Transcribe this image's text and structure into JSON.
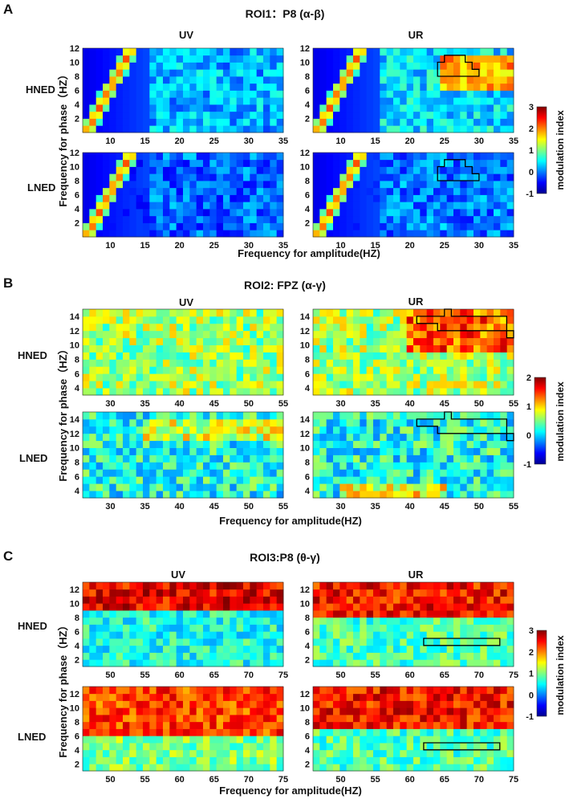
{
  "figure": {
    "panel_letters": [
      "A",
      "B",
      "C"
    ],
    "y_axis_label": "Frequency for phase（HZ）",
    "colorbar_label": "modulation index"
  },
  "chart_data": [
    {
      "type": "heatmap",
      "panel": "A",
      "title": "ROI1：P8 (α-β)",
      "col_labels": [
        "UV",
        "UR"
      ],
      "row_labels": [
        "HNED",
        "LNED"
      ],
      "xlabel": "Frequency for amplitude(HZ)",
      "ylabel": "Frequency for phase（HZ）",
      "xlim": [
        6,
        35
      ],
      "ylim": [
        0,
        12
      ],
      "x_ticks": [
        10,
        15,
        20,
        25,
        30,
        35
      ],
      "y_ticks": [
        2,
        4,
        6,
        8,
        10,
        12
      ],
      "colorbar": {
        "min": -1,
        "max": 3,
        "ticks": [
          -1,
          0,
          1,
          2,
          3
        ]
      },
      "cells": [
        {
          "row": "HNED",
          "col": "UV",
          "base": 0.2,
          "diagonal": true,
          "hot_band": null
        },
        {
          "row": "HNED",
          "col": "UR",
          "base": 0.4,
          "diagonal": true,
          "hot_band": {
            "x": [
              24,
              35
            ],
            "y": [
              6,
              11
            ],
            "value": 2.3
          }
        },
        {
          "row": "LNED",
          "col": "UV",
          "base": -0.1,
          "diagonal": true,
          "hot_band": null
        },
        {
          "row": "LNED",
          "col": "UR",
          "base": 0.0,
          "diagonal": true,
          "hot_band": null
        }
      ],
      "roi_outline": [
        [
          24,
          10
        ],
        [
          25,
          10
        ],
        [
          25,
          11
        ],
        [
          28,
          11
        ],
        [
          28,
          10
        ],
        [
          29,
          10
        ],
        [
          29,
          9
        ],
        [
          30,
          9
        ],
        [
          30,
          8
        ],
        [
          24,
          8
        ]
      ]
    },
    {
      "type": "heatmap",
      "panel": "B",
      "title": "ROI2: FPZ (α-γ)",
      "col_labels": [
        "UV",
        "UR"
      ],
      "row_labels": [
        "HNED",
        "LNED"
      ],
      "xlabel": "Frequency for amplitude(HZ)",
      "ylabel": "Frequency for phase（HZ）",
      "xlim": [
        26,
        55
      ],
      "ylim": [
        3,
        15
      ],
      "x_ticks": [
        30,
        35,
        40,
        45,
        50,
        55
      ],
      "y_ticks": [
        4,
        6,
        8,
        10,
        12,
        14
      ],
      "colorbar": {
        "min": -1,
        "max": 2,
        "ticks": [
          -1,
          0,
          1,
          2
        ]
      },
      "cells": [
        {
          "row": "HNED",
          "col": "UV",
          "base": 0.6,
          "hot_band": null
        },
        {
          "row": "HNED",
          "col": "UR",
          "base": 0.6,
          "hot_band": {
            "x": [
              40,
              55
            ],
            "y": [
              9,
              15
            ],
            "value": 1.8
          }
        },
        {
          "row": "LNED",
          "col": "UV",
          "base": 0.2,
          "hot_band": {
            "x": [
              35,
              55
            ],
            "y": [
              11,
              14
            ],
            "value": 1.2
          }
        },
        {
          "row": "LNED",
          "col": "UR",
          "base": 0.2,
          "hot_band": {
            "x": [
              30,
              45
            ],
            "y": [
              3,
              5
            ],
            "value": 1.3
          }
        }
      ],
      "roi_outline": [
        [
          41,
          14
        ],
        [
          45,
          14
        ],
        [
          45,
          15
        ],
        [
          46,
          15
        ],
        [
          46,
          14
        ],
        [
          54,
          14
        ],
        [
          54,
          12
        ],
        [
          55,
          12
        ],
        [
          55,
          11
        ],
        [
          54,
          11
        ],
        [
          54,
          12
        ],
        [
          44,
          12
        ],
        [
          44,
          13
        ],
        [
          41,
          13
        ]
      ]
    },
    {
      "type": "heatmap",
      "panel": "C",
      "title": "ROI3:P8 (θ-γ)",
      "col_labels": [
        "UV",
        "UR"
      ],
      "row_labels": [
        "HNED",
        "LNED"
      ],
      "xlabel": "Frequency for amplitude(HZ)",
      "ylabel": "Frequency for phase（HZ）",
      "xlim": [
        46,
        75
      ],
      "ylim": [
        1,
        13
      ],
      "x_ticks": [
        50,
        55,
        60,
        65,
        70,
        75
      ],
      "y_ticks": [
        2,
        4,
        6,
        8,
        10,
        12
      ],
      "colorbar": {
        "min": -1,
        "max": 3,
        "ticks": [
          -1,
          0,
          1,
          2,
          3
        ]
      },
      "cells": [
        {
          "row": "HNED",
          "col": "UV",
          "base": 0.6,
          "hot_band": {
            "x": [
              46,
              75
            ],
            "y": [
              9,
              13
            ],
            "value": 3.0
          }
        },
        {
          "row": "HNED",
          "col": "UR",
          "base": 0.8,
          "hot_band": {
            "x": [
              46,
              75
            ],
            "y": [
              8,
              13
            ],
            "value": 2.9
          }
        },
        {
          "row": "LNED",
          "col": "UV",
          "base": 1.0,
          "hot_band": {
            "x": [
              46,
              75
            ],
            "y": [
              6,
              13
            ],
            "value": 2.7
          }
        },
        {
          "row": "LNED",
          "col": "UR",
          "base": 0.8,
          "hot_band": {
            "x": [
              46,
              75
            ],
            "y": [
              7,
              13
            ],
            "value": 2.9
          }
        }
      ],
      "roi_outline": [
        [
          62,
          5
        ],
        [
          73,
          5
        ],
        [
          73,
          4
        ],
        [
          62,
          4
        ]
      ]
    }
  ]
}
